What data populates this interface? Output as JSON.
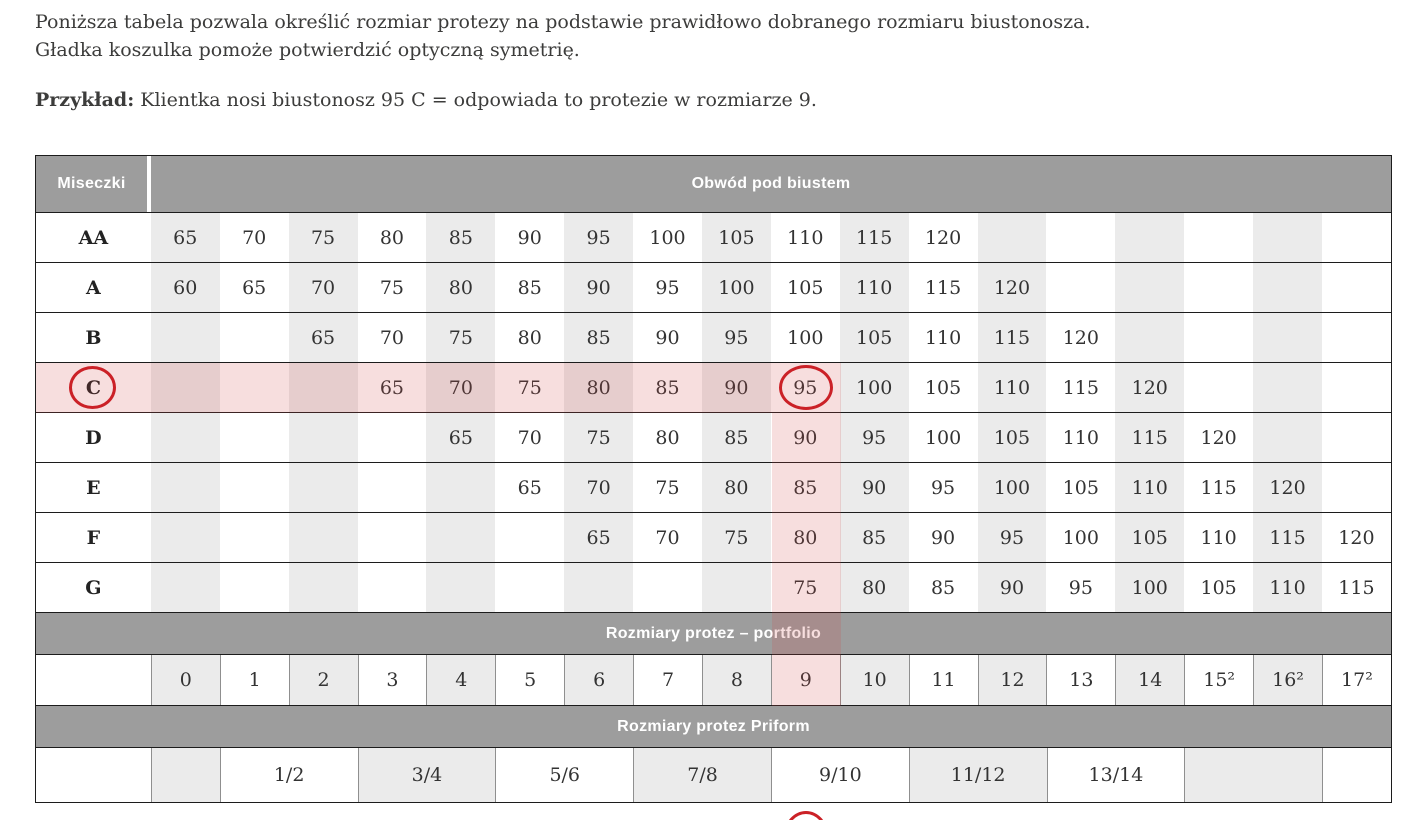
{
  "intro": {
    "line1": "Poniższa tabela pozwala określić rozmiar protezy na podstawie prawidłowo dobranego rozmiaru biustonosza.",
    "line2": "Gładka koszulka pomoże potwierdzić optyczną symetrię.",
    "example_label": "Przykład:",
    "example_text": " Klientka nosi biustonosz 95 C = odpowiada to protezie w rozmiarze 9."
  },
  "table": {
    "corner_header": "Miseczki",
    "band_header": "Obwód pod biustem",
    "cup_rows": [
      {
        "cup": "AA",
        "cells": [
          "65",
          "70",
          "75",
          "80",
          "85",
          "90",
          "95",
          "100",
          "105",
          "110",
          "115",
          "120",
          "",
          "",
          "",
          "",
          "",
          ""
        ]
      },
      {
        "cup": "A",
        "cells": [
          "60",
          "65",
          "70",
          "75",
          "80",
          "85",
          "90",
          "95",
          "100",
          "105",
          "110",
          "115",
          "120",
          "",
          "",
          "",
          "",
          ""
        ]
      },
      {
        "cup": "B",
        "cells": [
          "",
          "",
          "65",
          "70",
          "75",
          "80",
          "85",
          "90",
          "95",
          "100",
          "105",
          "110",
          "115",
          "120",
          "",
          "",
          "",
          ""
        ]
      },
      {
        "cup": "C",
        "cells": [
          "",
          "",
          "",
          "65",
          "70",
          "75",
          "80",
          "85",
          "90",
          "95",
          "100",
          "105",
          "110",
          "115",
          "120",
          "",
          "",
          ""
        ]
      },
      {
        "cup": "D",
        "cells": [
          "",
          "",
          "",
          "",
          "65",
          "70",
          "75",
          "80",
          "85",
          "90",
          "95",
          "100",
          "105",
          "110",
          "115",
          "120",
          "",
          ""
        ]
      },
      {
        "cup": "E",
        "cells": [
          "",
          "",
          "",
          "",
          "",
          "65",
          "70",
          "75",
          "80",
          "85",
          "90",
          "95",
          "100",
          "105",
          "110",
          "115",
          "120",
          ""
        ]
      },
      {
        "cup": "F",
        "cells": [
          "",
          "",
          "",
          "",
          "",
          "",
          "65",
          "70",
          "75",
          "80",
          "85",
          "90",
          "95",
          "100",
          "105",
          "110",
          "115",
          "120"
        ]
      },
      {
        "cup": "G",
        "cells": [
          "",
          "",
          "",
          "",
          "",
          "",
          "",
          "",
          "",
          "75",
          "80",
          "85",
          "90",
          "95",
          "100",
          "105",
          "110",
          "115"
        ]
      }
    ],
    "portfolio_header": "Rozmiary protez – portfolio",
    "portfolio_row": [
      "0",
      "1",
      "2",
      "3",
      "4",
      "5",
      "6",
      "7",
      "8",
      "9",
      "10",
      "11",
      "12",
      "13",
      "14",
      "15²",
      "16²",
      "17²"
    ],
    "priform_header": "Rozmiary protez Priform",
    "priform_cells": [
      {
        "label": "",
        "span": 1,
        "shade": "gray"
      },
      {
        "label": "1/2",
        "span": 2,
        "shade": "white"
      },
      {
        "label": "3/4",
        "span": 2,
        "shade": "gray"
      },
      {
        "label": "5/6",
        "span": 2,
        "shade": "white"
      },
      {
        "label": "7/8",
        "span": 2,
        "shade": "gray"
      },
      {
        "label": "9/10",
        "span": 2,
        "shade": "white"
      },
      {
        "label": "11/12",
        "span": 2,
        "shade": "gray"
      },
      {
        "label": "13/14",
        "span": 2,
        "shade": "white"
      },
      {
        "label": "",
        "span": 2,
        "shade": "gray"
      },
      {
        "label": "",
        "span": 1,
        "shade": "white"
      }
    ],
    "highlight": {
      "circled_cup": "C",
      "circled_underbust": "95",
      "circled_prosthesis_size": "9",
      "highlighted_row_cup": "C",
      "highlighted_column_underbust": "95"
    }
  },
  "colors": {
    "header_band": "#9d9d9d",
    "stripe": "#ebebeb",
    "highlight_overlay": "rgba(208,70,74,0.18)",
    "circle_red": "#cb2127",
    "border_dark": "#1c1c1c",
    "border_mid": "#8f8f8f",
    "text": "#3c3c3b"
  }
}
